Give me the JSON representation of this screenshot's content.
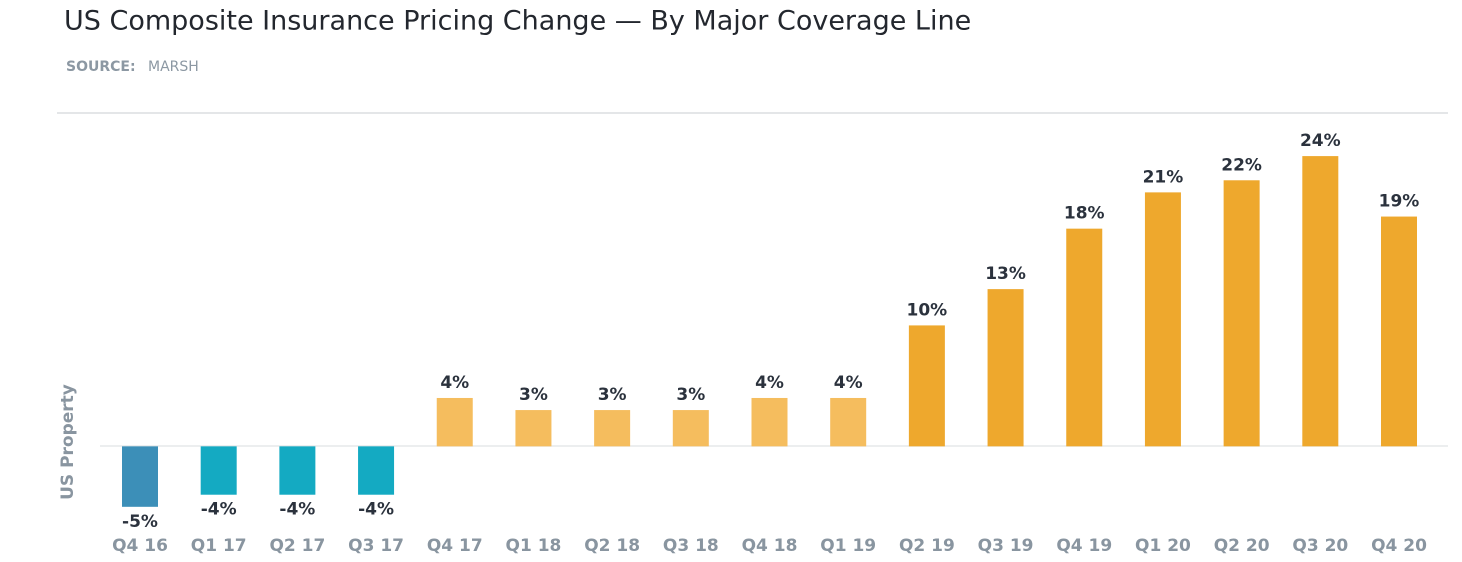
{
  "chart_data": {
    "type": "bar",
    "title": "US Composite Insurance Pricing Change — By Major Coverage Line",
    "source_label": "SOURCE:",
    "source": "MARSH",
    "y_label": "US Property",
    "categories": [
      "Q4 16",
      "Q1 17",
      "Q2 17",
      "Q3 17",
      "Q4 17",
      "Q1 18",
      "Q2 18",
      "Q3 18",
      "Q4 18",
      "Q1 19",
      "Q2 19",
      "Q3 19",
      "Q4 19",
      "Q1 20",
      "Q2 20",
      "Q3 20",
      "Q4 20"
    ],
    "values": [
      -5,
      -4,
      -4,
      -4,
      4,
      3,
      3,
      3,
      4,
      4,
      10,
      13,
      18,
      21,
      22,
      24,
      19
    ],
    "value_labels": [
      "-5%",
      "-4%",
      "-4%",
      "-4%",
      "4%",
      "3%",
      "3%",
      "3%",
      "4%",
      "4%",
      "10%",
      "13%",
      "18%",
      "21%",
      "22%",
      "24%",
      "19%"
    ],
    "colors": [
      "#3c8fb8",
      "#14aac2",
      "#14aac2",
      "#14aac2",
      "#f5bd5e",
      "#f5bd5e",
      "#f5bd5e",
      "#f5bd5e",
      "#f5bd5e",
      "#f5bd5e",
      "#eea82d",
      "#eea82d",
      "#eea82d",
      "#eea82d",
      "#eea82d",
      "#eea82d",
      "#eea82d"
    ],
    "ylim": [
      -7,
      25
    ]
  }
}
